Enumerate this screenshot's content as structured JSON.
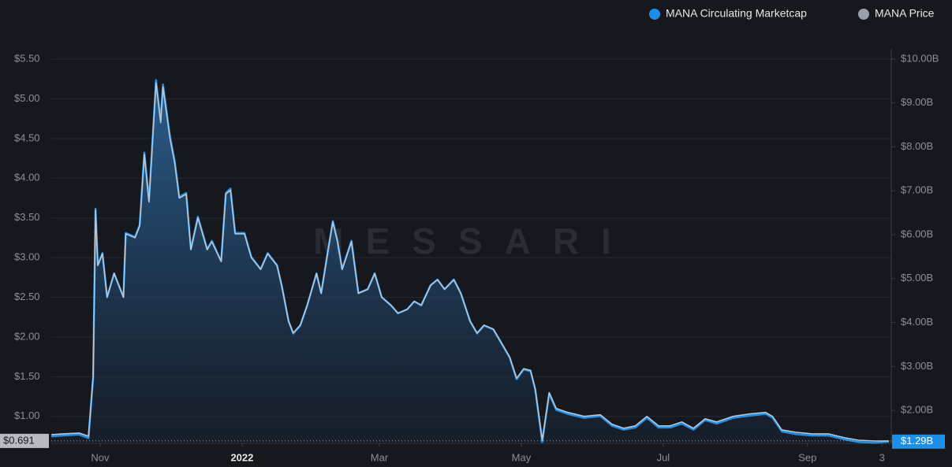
{
  "chart_data": {
    "type": "line",
    "legend": "top-right",
    "grid": true,
    "watermark": "MESSARI",
    "x": [
      "2021-10-11",
      "2021-10-16",
      "2021-10-23",
      "2021-10-27",
      "2021-10-29",
      "2021-10-30",
      "2021-10-31",
      "2021-11-02",
      "2021-11-04",
      "2021-11-07",
      "2021-11-11",
      "2021-11-12",
      "2021-11-16",
      "2021-11-18",
      "2021-11-20",
      "2021-11-22",
      "2021-11-25",
      "2021-11-27",
      "2021-11-28",
      "2021-12-01",
      "2021-12-03",
      "2021-12-05",
      "2021-12-08",
      "2021-12-10",
      "2021-12-13",
      "2021-12-17",
      "2021-12-19",
      "2021-12-23",
      "2021-12-25",
      "2021-12-27",
      "2021-12-29",
      "2022-01-02",
      "2022-01-05",
      "2022-01-09",
      "2022-01-12",
      "2022-01-16",
      "2022-01-18",
      "2022-01-21",
      "2022-01-23",
      "2022-01-26",
      "2022-01-29",
      "2022-02-02",
      "2022-02-04",
      "2022-02-07",
      "2022-02-09",
      "2022-02-11",
      "2022-02-13",
      "2022-02-17",
      "2022-02-20",
      "2022-02-24",
      "2022-02-27",
      "2022-03-02",
      "2022-03-06",
      "2022-03-09",
      "2022-03-13",
      "2022-03-16",
      "2022-03-19",
      "2022-03-23",
      "2022-03-26",
      "2022-03-29",
      "2022-04-02",
      "2022-04-05",
      "2022-04-09",
      "2022-04-12",
      "2022-04-15",
      "2022-04-19",
      "2022-04-22",
      "2022-04-26",
      "2022-04-29",
      "2022-05-02",
      "2022-05-05",
      "2022-05-07",
      "2022-05-10",
      "2022-05-13",
      "2022-05-16",
      "2022-05-21",
      "2022-05-28",
      "2022-06-04",
      "2022-06-09",
      "2022-06-14",
      "2022-06-19",
      "2022-06-24",
      "2022-06-29",
      "2022-07-04",
      "2022-07-09",
      "2022-07-14",
      "2022-07-19",
      "2022-07-24",
      "2022-07-31",
      "2022-08-07",
      "2022-08-14",
      "2022-08-17",
      "2022-08-21",
      "2022-08-27",
      "2022-09-03",
      "2022-09-10",
      "2022-09-17",
      "2022-09-23",
      "2022-09-30",
      "2022-10-06"
    ],
    "xlim": [
      "2021-10-11",
      "2022-10-07"
    ],
    "xticks": [
      {
        "value": "2021-11-01",
        "label": "Nov"
      },
      {
        "value": "2022-01-01",
        "label": "2022"
      },
      {
        "value": "2022-03-01",
        "label": "Mar"
      },
      {
        "value": "2022-05-01",
        "label": "May"
      },
      {
        "value": "2022-07-01",
        "label": "Jul"
      },
      {
        "value": "2022-09-01",
        "label": "Sep"
      },
      {
        "value": "2022-10-03",
        "label": "3"
      }
    ],
    "ylim": [
      0.66,
      5.63
    ],
    "yticks": [
      {
        "value": 1,
        "label": "$1.00"
      },
      {
        "value": 1.5,
        "label": "$1.50"
      },
      {
        "value": 2,
        "label": "$2.00"
      },
      {
        "value": 2.5,
        "label": "$2.50"
      },
      {
        "value": 3,
        "label": "$3.00"
      },
      {
        "value": 3.5,
        "label": "$3.50"
      },
      {
        "value": 4,
        "label": "$4.00"
      },
      {
        "value": 4.5,
        "label": "$4.50"
      },
      {
        "value": 5,
        "label": "$5.00"
      },
      {
        "value": 5.5,
        "label": "$5.50"
      }
    ],
    "y2lim": [
      1.25,
      10.23
    ],
    "y2ticks": [
      {
        "value": 2,
        "label": "$2.00B"
      },
      {
        "value": 3,
        "label": "$3.00B"
      },
      {
        "value": 4,
        "label": "$4.00B"
      },
      {
        "value": 5,
        "label": "$5.00B"
      },
      {
        "value": 6,
        "label": "$6.00B"
      },
      {
        "value": 7,
        "label": "$7.00B"
      },
      {
        "value": 8,
        "label": "$8.00B"
      },
      {
        "value": 9,
        "label": "$9.00B"
      },
      {
        "value": 10,
        "label": "$10.00B"
      }
    ],
    "series": [
      {
        "name": "MANA Circulating Marketcap",
        "color": "#1e8fe8",
        "axis": "y2",
        "current": {
          "value": 1.29,
          "label": "$1.29B"
        },
        "values": [
          1.41,
          1.43,
          1.45,
          1.37,
          2.75,
          6.59,
          5.31,
          5.58,
          4.58,
          5.12,
          4.58,
          6.04,
          5.95,
          6.22,
          7.87,
          6.77,
          9.52,
          8.6,
          9.42,
          8.24,
          7.69,
          6.86,
          6.95,
          5.67,
          6.41,
          5.67,
          5.86,
          5.4,
          6.95,
          7.05,
          6.04,
          6.04,
          5.49,
          5.22,
          5.58,
          5.31,
          4.85,
          4.03,
          3.75,
          3.93,
          4.39,
          5.12,
          4.67,
          5.67,
          6.31,
          5.86,
          5.22,
          5.86,
          4.67,
          4.76,
          5.12,
          4.58,
          4.39,
          4.21,
          4.3,
          4.48,
          4.39,
          4.85,
          4.98,
          4.76,
          4.98,
          4.67,
          4.03,
          3.75,
          3.93,
          3.84,
          3.57,
          3.2,
          2.71,
          2.93,
          2.89,
          2.47,
          1.28,
          2.38,
          2.01,
          1.92,
          1.83,
          1.87,
          1.65,
          1.56,
          1.61,
          1.83,
          1.61,
          1.61,
          1.7,
          1.56,
          1.78,
          1.7,
          1.83,
          1.88,
          1.92,
          1.83,
          1.52,
          1.46,
          1.43,
          1.43,
          1.34,
          1.28,
          1.26,
          1.29
        ]
      },
      {
        "name": "MANA Price",
        "color": "#b9c6d4",
        "current": {
          "value": 0.691,
          "label": "$0.691"
        },
        "values": [
          0.77,
          0.78,
          0.79,
          0.75,
          1.5,
          3.6,
          2.9,
          3.05,
          2.5,
          2.8,
          2.5,
          3.3,
          3.25,
          3.4,
          4.3,
          3.7,
          5.2,
          4.7,
          5.15,
          4.5,
          4.2,
          3.75,
          3.8,
          3.1,
          3.5,
          3.1,
          3.2,
          2.95,
          3.8,
          3.85,
          3.3,
          3.3,
          3.0,
          2.85,
          3.05,
          2.9,
          2.65,
          2.2,
          2.05,
          2.15,
          2.4,
          2.8,
          2.55,
          3.1,
          3.45,
          3.2,
          2.85,
          3.2,
          2.55,
          2.6,
          2.8,
          2.5,
          2.4,
          2.3,
          2.35,
          2.45,
          2.4,
          2.65,
          2.72,
          2.6,
          2.72,
          2.55,
          2.2,
          2.05,
          2.15,
          2.1,
          1.95,
          1.75,
          1.48,
          1.6,
          1.58,
          1.35,
          0.7,
          1.3,
          1.1,
          1.05,
          1.0,
          1.02,
          0.9,
          0.85,
          0.88,
          1.0,
          0.88,
          0.88,
          0.93,
          0.85,
          0.97,
          0.93,
          1.0,
          1.03,
          1.05,
          1.0,
          0.83,
          0.8,
          0.78,
          0.78,
          0.73,
          0.7,
          0.69,
          0.691
        ]
      }
    ]
  }
}
